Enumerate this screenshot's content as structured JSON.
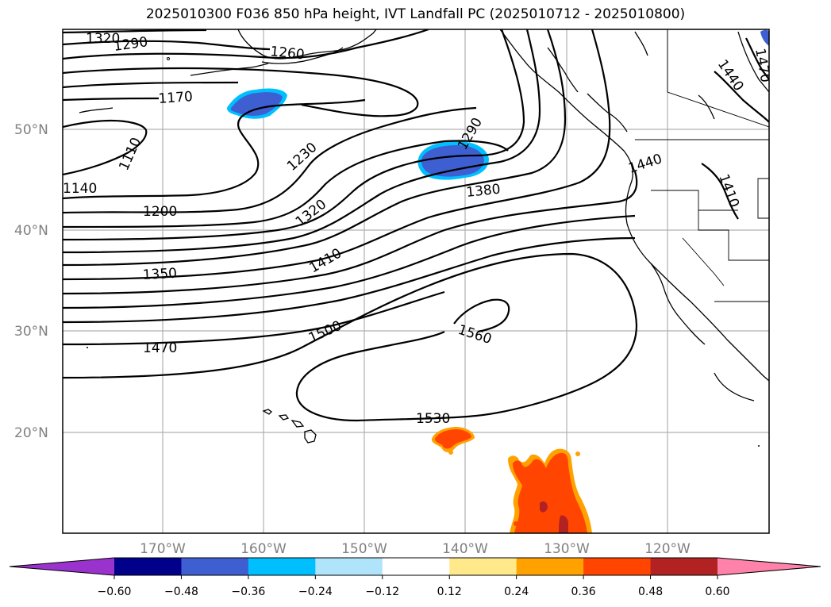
{
  "title": "2025010300 F036 850 hPa height, IVT Landfall PC (2025010712 - 2025010800)",
  "map": {
    "lat_labels": [
      "50°N",
      "40°N",
      "30°N",
      "20°N"
    ],
    "lon_labels": [
      "170°W",
      "160°W",
      "150°W",
      "140°W",
      "130°W",
      "120°W"
    ]
  },
  "contour_labels": [
    "1320",
    "1290",
    "1260",
    "1170",
    "1110",
    "1140",
    "1230",
    "1200",
    "1290",
    "1320",
    "1380",
    "1350",
    "1410",
    "1440",
    "1410",
    "1470",
    "1500",
    "1560",
    "1470",
    "1530",
    "1440"
  ],
  "colorbar": {
    "ticks": [
      "−0.60",
      "−0.48",
      "−0.36",
      "−0.24",
      "−0.12",
      "0.12",
      "0.24",
      "0.36",
      "0.48",
      "0.60"
    ],
    "colors": [
      "#9a32cd",
      "#00008b",
      "#3d5fd1",
      "#00bfff",
      "#afe4fb",
      "#ffffff",
      "#ffe98a",
      "#ffa200",
      "#ff4500",
      "#b22222",
      "#ff82ab"
    ]
  }
}
